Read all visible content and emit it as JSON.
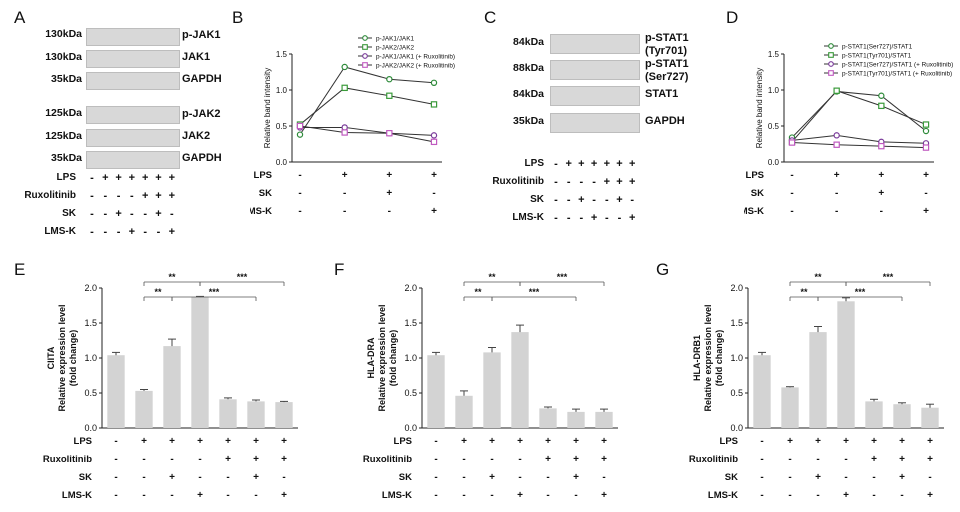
{
  "panels": {
    "A": {
      "label": "A",
      "groups": [
        {
          "mw": [
            "130kDa",
            "130kDa",
            "35kDa"
          ],
          "proteins": [
            "p-JAK1",
            "JAK1",
            "GAPDH"
          ]
        },
        {
          "mw": [
            "125kDa",
            "125kDa",
            "35kDa"
          ],
          "proteins": [
            "p-JAK2",
            "JAK2",
            "GAPDH"
          ]
        }
      ],
      "rows": [
        "LPS",
        "Ruxolitinib",
        "SK",
        "LMS-K"
      ],
      "signs": [
        [
          "-",
          "+",
          "+",
          "+",
          "+",
          "+",
          "+"
        ],
        [
          "-",
          "-",
          "-",
          "-",
          "+",
          "+",
          "+"
        ],
        [
          "-",
          "-",
          "+",
          "-",
          "-",
          "+",
          "-"
        ],
        [
          "-",
          "-",
          "-",
          "+",
          "-",
          "-",
          "+"
        ]
      ]
    },
    "B": {
      "label": "B",
      "rows": [
        "LPS",
        "SK",
        "LMS-K"
      ],
      "signs": [
        [
          "-",
          "+",
          "+",
          "+"
        ],
        [
          "-",
          "-",
          "+",
          "-"
        ],
        [
          "-",
          "-",
          "-",
          "+"
        ]
      ]
    },
    "C": {
      "label": "C",
      "mw": [
        "84kDa",
        "88kDa",
        "84kDa",
        "35kDa"
      ],
      "proteins": [
        "p-STAT1\n(Tyr701)",
        "p-STAT1\n(Ser727)",
        "STAT1",
        "GAPDH"
      ],
      "rows": [
        "LPS",
        "Ruxolitinib",
        "SK",
        "LMS-K"
      ],
      "signs": [
        [
          "-",
          "+",
          "+",
          "+",
          "+",
          "+",
          "+"
        ],
        [
          "-",
          "-",
          "-",
          "-",
          "+",
          "+",
          "+"
        ],
        [
          "-",
          "-",
          "+",
          "-",
          "-",
          "+",
          "-"
        ],
        [
          "-",
          "-",
          "-",
          "+",
          "-",
          "-",
          "+"
        ]
      ]
    },
    "D": {
      "label": "D",
      "rows": [
        "LPS",
        "SK",
        "LMS-K"
      ],
      "signs": [
        [
          "-",
          "+",
          "+",
          "+"
        ],
        [
          "-",
          "-",
          "+",
          "-"
        ],
        [
          "-",
          "-",
          "-",
          "+"
        ]
      ]
    },
    "E": {
      "label": "E"
    },
    "F": {
      "label": "F"
    },
    "G": {
      "label": "G"
    }
  },
  "barRows": [
    "LPS",
    "Ruxolitinib",
    "SK",
    "LMS-K"
  ],
  "barSigns": [
    [
      "-",
      "+",
      "+",
      "+",
      "+",
      "+",
      "+"
    ],
    [
      "-",
      "-",
      "-",
      "-",
      "+",
      "+",
      "+"
    ],
    [
      "-",
      "-",
      "+",
      "-",
      "-",
      "+",
      "-"
    ],
    [
      "-",
      "-",
      "-",
      "+",
      "-",
      "-",
      "+"
    ]
  ],
  "chart_data": [
    {
      "id": "B",
      "type": "line",
      "title": "",
      "xlabel": "",
      "ylabel": "Relative band intensity",
      "ylim": [
        0,
        1.5
      ],
      "yticks": [
        "0.0",
        "0.5",
        "1.0",
        "1.5"
      ],
      "categories": [
        "1",
        "2",
        "3",
        "4"
      ],
      "legend_position": "top-right",
      "series": [
        {
          "name": "p-JAK1/JAK1",
          "marker": "circle",
          "color": "#2e8b3a",
          "values": [
            0.38,
            1.32,
            1.15,
            1.1
          ]
        },
        {
          "name": "p-JAK2/JAK2",
          "marker": "square",
          "color": "#3a9a3a",
          "values": [
            0.52,
            1.03,
            0.92,
            0.8
          ]
        },
        {
          "name": "p-JAK1/JAK1 (+ Ruxolitinib)",
          "marker": "circle",
          "color": "#7a3a9a",
          "values": [
            0.48,
            0.48,
            0.4,
            0.37
          ]
        },
        {
          "name": "p-JAK2/JAK2 (+ Ruxolitinib)",
          "marker": "square",
          "color": "#c05ac0",
          "values": [
            0.5,
            0.41,
            0.4,
            0.28
          ]
        }
      ]
    },
    {
      "id": "D",
      "type": "line",
      "title": "",
      "xlabel": "",
      "ylabel": "Relative band intensity",
      "ylim": [
        0,
        1.5
      ],
      "yticks": [
        "0.0",
        "0.5",
        "1.0",
        "1.5"
      ],
      "categories": [
        "1",
        "2",
        "3",
        "4"
      ],
      "legend_position": "top-right",
      "series": [
        {
          "name": "p-STAT1(Ser727)/STAT1",
          "marker": "circle",
          "color": "#2e8b3a",
          "values": [
            0.34,
            0.98,
            0.92,
            0.43
          ]
        },
        {
          "name": "p-STAT1(Tyr701)/STAT1",
          "marker": "square",
          "color": "#3a9a3a",
          "values": [
            0.28,
            0.99,
            0.78,
            0.52
          ]
        },
        {
          "name": "p-STAT1(Ser727)/STAT1 (+ Ruxolitinib)",
          "marker": "circle",
          "color": "#7a3a9a",
          "values": [
            0.3,
            0.37,
            0.28,
            0.26
          ]
        },
        {
          "name": "p-STAT1(Tyr701)/STAT1 (+ Ruxolitinib)",
          "marker": "square",
          "color": "#c05ac0",
          "values": [
            0.27,
            0.24,
            0.22,
            0.2
          ]
        }
      ]
    },
    {
      "id": "E",
      "type": "bar",
      "title": "",
      "ylabel": "CIITA\nRelative expression level\n(fold change)",
      "ylim": [
        0,
        2.0
      ],
      "yticks": [
        "0.0",
        "0.5",
        "1.0",
        "1.5",
        "2.0"
      ],
      "categories": [
        "1",
        "2",
        "3",
        "4",
        "5",
        "6",
        "7"
      ],
      "values": [
        1.04,
        0.53,
        1.17,
        1.87,
        0.41,
        0.38,
        0.37
      ],
      "errors": [
        0.04,
        0.02,
        0.1,
        0.01,
        0.02,
        0.02,
        0.01
      ],
      "significance": [
        {
          "from": 2,
          "to": 4,
          "label": "**",
          "level": 2
        },
        {
          "from": 2,
          "to": 3,
          "label": "**",
          "level": 1
        },
        {
          "from": 4,
          "to": 7,
          "label": "***",
          "level": 2
        },
        {
          "from": 3,
          "to": 6,
          "label": "***",
          "level": 1
        }
      ]
    },
    {
      "id": "F",
      "type": "bar",
      "title": "",
      "ylabel": "HLA-DRA\nRelative expression level\n(fold change)",
      "ylim": [
        0,
        2.0
      ],
      "yticks": [
        "0.0",
        "0.5",
        "1.0",
        "1.5",
        "2.0"
      ],
      "categories": [
        "1",
        "2",
        "3",
        "4",
        "5",
        "6",
        "7"
      ],
      "values": [
        1.04,
        0.46,
        1.08,
        1.37,
        0.28,
        0.23,
        0.23
      ],
      "errors": [
        0.04,
        0.07,
        0.07,
        0.1,
        0.02,
        0.04,
        0.04
      ],
      "significance": [
        {
          "from": 2,
          "to": 4,
          "label": "**",
          "level": 2
        },
        {
          "from": 2,
          "to": 3,
          "label": "**",
          "level": 1
        },
        {
          "from": 4,
          "to": 7,
          "label": "***",
          "level": 2
        },
        {
          "from": 3,
          "to": 6,
          "label": "***",
          "level": 1
        }
      ]
    },
    {
      "id": "G",
      "type": "bar",
      "title": "",
      "ylabel": "HLA-DRB1\nRelative expression level\n(fold change)",
      "ylim": [
        0,
        2.0
      ],
      "yticks": [
        "0.0",
        "0.5",
        "1.0",
        "1.5",
        "2.0"
      ],
      "categories": [
        "1",
        "2",
        "3",
        "4",
        "5",
        "6",
        "7"
      ],
      "values": [
        1.04,
        0.58,
        1.37,
        1.81,
        0.38,
        0.34,
        0.29
      ],
      "errors": [
        0.04,
        0.01,
        0.08,
        0.05,
        0.03,
        0.02,
        0.05
      ],
      "significance": [
        {
          "from": 2,
          "to": 4,
          "label": "**",
          "level": 2
        },
        {
          "from": 2,
          "to": 3,
          "label": "**",
          "level": 1
        },
        {
          "from": 4,
          "to": 7,
          "label": "***",
          "level": 2
        },
        {
          "from": 3,
          "to": 6,
          "label": "***",
          "level": 1
        }
      ]
    }
  ]
}
